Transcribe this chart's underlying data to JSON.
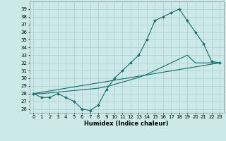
{
  "xlabel": "Humidex (Indice chaleur)",
  "ylabel": "",
  "bg_color": "#cce8e8",
  "line_color": "#1a6b6b",
  "grid_color": "#aacfcf",
  "xlim": [
    -0.5,
    23.5
  ],
  "ylim": [
    25.5,
    40.0
  ],
  "xticks": [
    0,
    1,
    2,
    3,
    4,
    5,
    6,
    7,
    8,
    9,
    10,
    11,
    12,
    13,
    14,
    15,
    16,
    17,
    18,
    19,
    20,
    21,
    22,
    23
  ],
  "yticks": [
    26,
    27,
    28,
    29,
    30,
    31,
    32,
    33,
    34,
    35,
    36,
    37,
    38,
    39
  ],
  "series1_x": [
    0,
    1,
    2,
    3,
    4,
    5,
    6,
    7,
    8,
    9,
    10,
    11,
    12,
    13,
    14,
    15,
    16,
    17,
    18,
    19,
    20,
    21,
    22,
    23
  ],
  "series1_y": [
    28.0,
    27.5,
    27.5,
    28.0,
    27.5,
    27.0,
    26.0,
    25.8,
    26.5,
    28.5,
    30.0,
    31.0,
    32.0,
    33.0,
    35.0,
    37.5,
    38.0,
    38.5,
    39.0,
    37.5,
    36.0,
    34.5,
    32.2,
    32.0
  ],
  "series2_x": [
    0,
    23
  ],
  "series2_y": [
    28.0,
    32.0
  ],
  "series3_x": [
    0,
    1,
    2,
    3,
    4,
    5,
    6,
    7,
    8,
    9,
    10,
    11,
    12,
    13,
    14,
    15,
    16,
    17,
    18,
    19,
    20,
    21,
    22,
    23
  ],
  "series3_y": [
    28.0,
    28.0,
    28.1,
    28.2,
    28.3,
    28.4,
    28.5,
    28.6,
    28.7,
    28.9,
    29.2,
    29.5,
    29.8,
    30.1,
    30.5,
    31.0,
    31.5,
    32.0,
    32.5,
    33.0,
    32.0,
    32.0,
    32.0,
    32.0
  ]
}
